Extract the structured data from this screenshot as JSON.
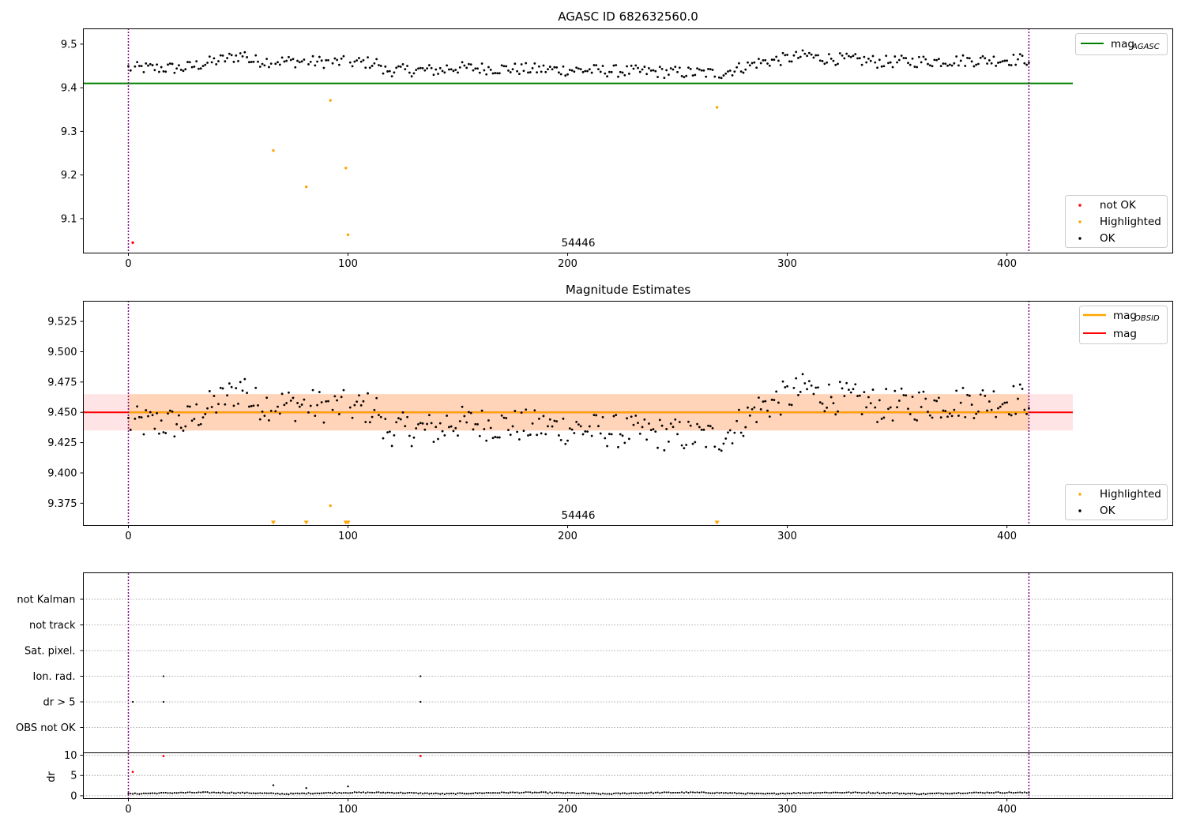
{
  "chart_data": [
    {
      "type": "scatter",
      "title": "AGASC ID 682632560.0",
      "xlim": [
        -20.5,
        475.5
      ],
      "ylim": [
        9.022,
        9.536
      ],
      "xticks": [
        0,
        100,
        200,
        300,
        400
      ],
      "yticks": [
        9.1,
        9.2,
        9.3,
        9.4,
        9.5
      ],
      "ytick_labels": [
        "9.1",
        "9.2",
        "9.3",
        "9.4",
        "9.5"
      ],
      "annotation": "54446",
      "reference_lines": [
        {
          "name": "mag_AGASC",
          "y": 9.41,
          "x_range": [
            -20.5,
            430
          ],
          "color": "#008000"
        }
      ],
      "vertical_lines": [
        0,
        410
      ],
      "legend_upper": [
        {
          "label": "mag",
          "sub": "AGASC",
          "kind": "line",
          "color": "#008000"
        }
      ],
      "legend_lower": [
        {
          "label": "not OK",
          "kind": "marker",
          "color": "#ff0000"
        },
        {
          "label": "Highlighted",
          "kind": "marker",
          "color": "#ffa500"
        },
        {
          "label": "OK",
          "kind": "marker",
          "color": "#000000"
        }
      ],
      "series": [
        {
          "name": "not OK",
          "color": "#ff0000",
          "points": [
            [
              2,
              9.045
            ]
          ]
        },
        {
          "name": "Highlighted",
          "color": "#ffa500",
          "points": [
            [
              66,
              9.256
            ],
            [
              81,
              9.173
            ],
            [
              92,
              9.371
            ],
            [
              99,
              9.216
            ],
            [
              100,
              9.063
            ],
            [
              268,
              9.355
            ]
          ]
        }
      ]
    },
    {
      "type": "scatter",
      "title": "Magnitude Estimates",
      "xlim": [
        -20.5,
        475.5
      ],
      "ylim": [
        9.357,
        9.542
      ],
      "xticks": [
        0,
        100,
        200,
        300,
        400
      ],
      "yticks": [
        9.4,
        9.425,
        9.45,
        9.475,
        9.5,
        9.525,
        9.375
      ],
      "ytick_labels": [
        "9.400",
        "9.425",
        "9.450",
        "9.475",
        "9.500",
        "9.525",
        "9.375"
      ],
      "annotation": "54446",
      "mag": 9.45,
      "mag_band": [
        9.435,
        9.465
      ],
      "vertical_lines": [
        0,
        410
      ],
      "legend_upper": [
        {
          "label": "mag",
          "sub": "OBSID",
          "kind": "line",
          "color": "#ffa500"
        },
        {
          "label": "mag",
          "sub": "",
          "kind": "line",
          "color": "#ff0000"
        }
      ],
      "legend_lower": [
        {
          "label": "Highlighted",
          "kind": "marker",
          "color": "#ffa500"
        },
        {
          "label": "OK",
          "kind": "marker",
          "color": "#000000"
        }
      ],
      "highlighted_points": [
        [
          92,
          9.373
        ]
      ],
      "below_range_markers_x": [
        66,
        81,
        99,
        100,
        268
      ]
    },
    {
      "type": "scatter",
      "categories": [
        "not Kalman",
        "not track",
        "Sat. pixel.",
        "Ion. rad.",
        "dr > 5",
        "OBS not OK"
      ],
      "flags": [
        {
          "category": "Ion. rad.",
          "x": [
            16,
            133
          ]
        },
        {
          "category": "dr > 5",
          "x": [
            2,
            16,
            133
          ]
        }
      ],
      "vertical_lines": [
        0,
        410
      ],
      "xlim": [
        -20.5,
        475.5
      ],
      "xticks": [
        0,
        100,
        200,
        300,
        400
      ]
    },
    {
      "type": "scatter",
      "ylabel": "dr",
      "xlim": [
        -20.5,
        475.5
      ],
      "ylim": [
        -0.6,
        10.5
      ],
      "yticks": [
        0,
        5,
        10
      ],
      "xticks": [
        0,
        100,
        200,
        300,
        400
      ],
      "threshold_y": 5,
      "vertical_lines": [
        0,
        410
      ],
      "outliers_red": [
        [
          2,
          5.9
        ],
        [
          16,
          9.8
        ],
        [
          133,
          9.8
        ]
      ],
      "outliers_black": [
        [
          66,
          2.6
        ],
        [
          81,
          1.9
        ],
        [
          100,
          2.3
        ]
      ]
    }
  ],
  "colors": {
    "green": "#008000",
    "orange": "#ffa500",
    "red": "#ff0000",
    "band": "#ffe4e6",
    "purple": "#800080"
  }
}
